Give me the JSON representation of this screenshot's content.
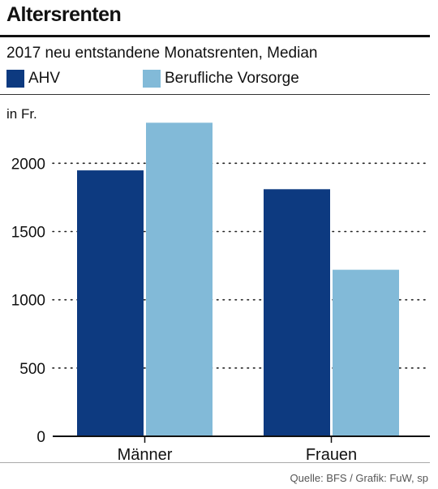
{
  "header": {
    "title": "Altersrenten",
    "subtitle": "2017 neu entstandene Monatsrenten, Median"
  },
  "legend": [
    {
      "label": "AHV",
      "color": "#0d3a80"
    },
    {
      "label": "Berufliche Vorsorge",
      "color": "#82bad8"
    }
  ],
  "footer": {
    "source": "Quelle: BFS / Grafik: FuW, sp"
  },
  "chart_data": {
    "type": "bar",
    "unit_label": "in Fr.",
    "categories": [
      "Männer",
      "Frauen"
    ],
    "series": [
      {
        "name": "AHV",
        "color": "#0d3a80",
        "values": [
          1948,
          1810
        ]
      },
      {
        "name": "Berufliche Vorsorge",
        "color": "#82bad8",
        "values": [
          2297,
          1220
        ]
      }
    ],
    "yticks": [
      "0",
      "500",
      "1000",
      "1500",
      "2000"
    ],
    "ylim": [
      0,
      2400
    ],
    "grid": true,
    "grid_style": "dotted",
    "legend_position": "top-left"
  }
}
